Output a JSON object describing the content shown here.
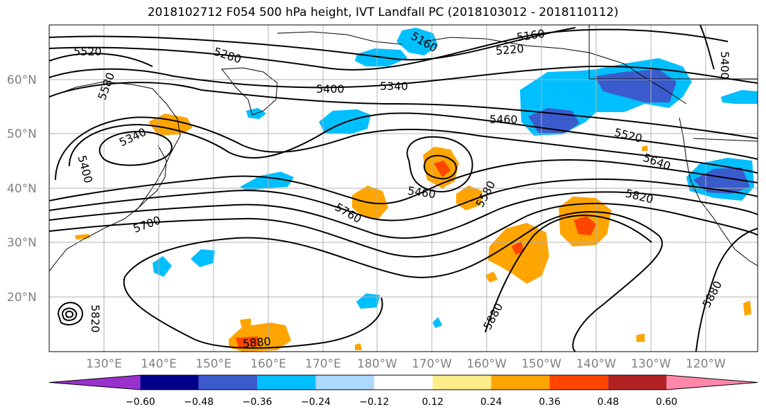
{
  "title": "2018102712 F054 500 hPa height, IVT Landfall PC (2018103012 - 2018110112)",
  "lat_labels": [
    "60°N",
    "50°N",
    "40°N",
    "30°N",
    "20°N"
  ],
  "lon_labels": [
    "130°E",
    "140°E",
    "150°E",
    "160°E",
    "170°E",
    "180°W",
    "170°W",
    "160°W",
    "150°W",
    "140°W",
    "130°W",
    "120°W"
  ],
  "contour_labels": [
    "5520",
    "5580",
    "5280",
    "5160",
    "5220",
    "5400",
    "5340",
    "5460",
    "5520",
    "5640",
    "5340",
    "5400",
    "5460",
    "5580",
    "5820",
    "5760",
    "5700",
    "5880",
    "5880",
    "5880",
    "5820",
    "5400",
    "5160"
  ],
  "colorbar": {
    "colors": [
      "#9932cc",
      "#00008b",
      "#3a5bcc",
      "#00bfff",
      "#add8ff",
      "#ffffff",
      "#ffec8b",
      "#ffa500",
      "#ff4500",
      "#b22222",
      "#ff88aa"
    ],
    "tick_labels": [
      "−0.60",
      "−0.48",
      "−0.36",
      "−0.24",
      "−0.12",
      "0.12",
      "0.24",
      "0.36",
      "0.48",
      "0.60"
    ]
  }
}
